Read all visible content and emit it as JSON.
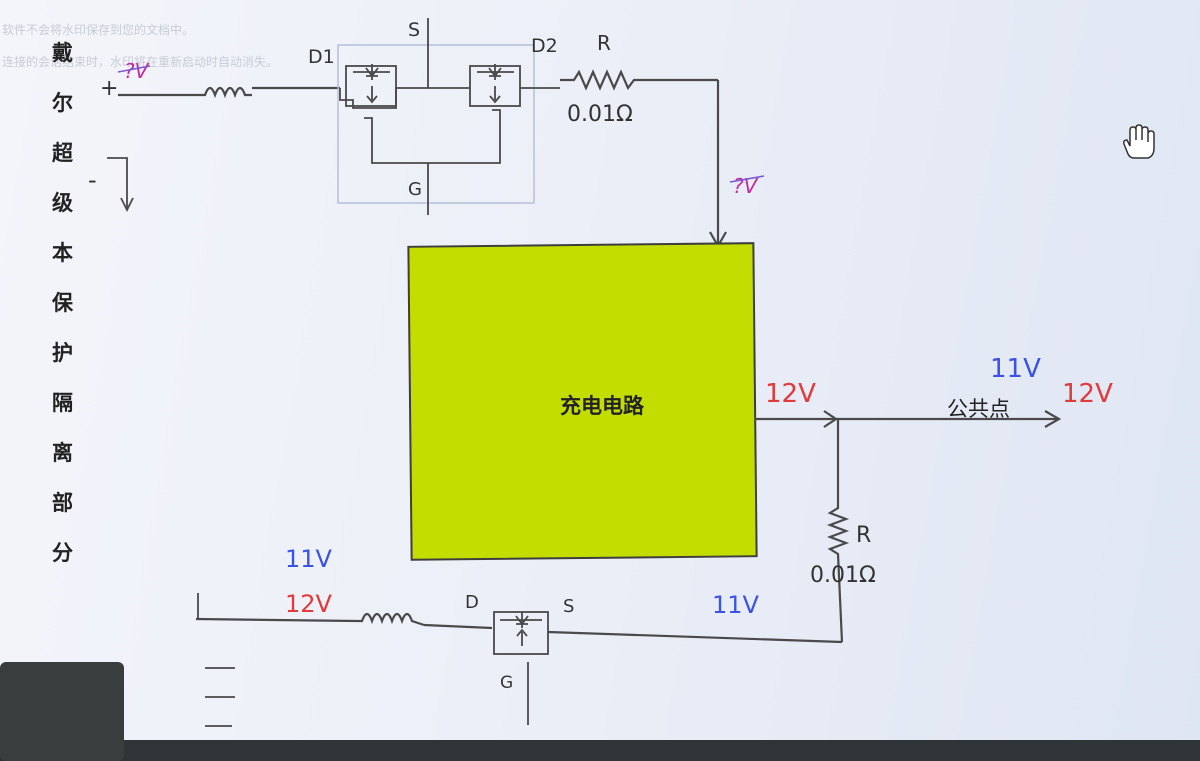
{
  "watermark": {
    "line1": "软件不会将水印保存到您的文档中。",
    "line2": "连接的会话结束时，水印将在重新启动时自动消失。"
  },
  "side_title": [
    "戴",
    "尔",
    "超",
    "级",
    "本",
    "保",
    "护",
    "隔",
    "离",
    "部",
    "分"
  ],
  "labels": {
    "plus_top": "+",
    "minus_top": "-",
    "d1": "D1",
    "s_top": "S",
    "d2": "D2",
    "g_top": "G",
    "r_top": "R",
    "r_top_value": "0.01Ω",
    "charging_circuit": "充电电路",
    "common_point": "公共点",
    "r_right": "R",
    "r_right_value": "0.01Ω",
    "d_bottom": "D",
    "s_bottom": "S",
    "g_bottom": "G"
  },
  "annotations": {
    "v_input_top": "?V",
    "v_after_r": "?V",
    "v_charge_out": "12V",
    "v_common_blue": "11V",
    "v_common_red": "12V",
    "v_bottom_blue": "11V",
    "v_bottom_red": "12V",
    "v_bottom_right_blue": "11V"
  },
  "colors": {
    "charging_box": "#c3dd00",
    "red_annotation": "#e23a3a",
    "blue_annotation": "#3a52e6",
    "pink_annotation": "#c42a9e",
    "wire": "#4a4a4a"
  }
}
